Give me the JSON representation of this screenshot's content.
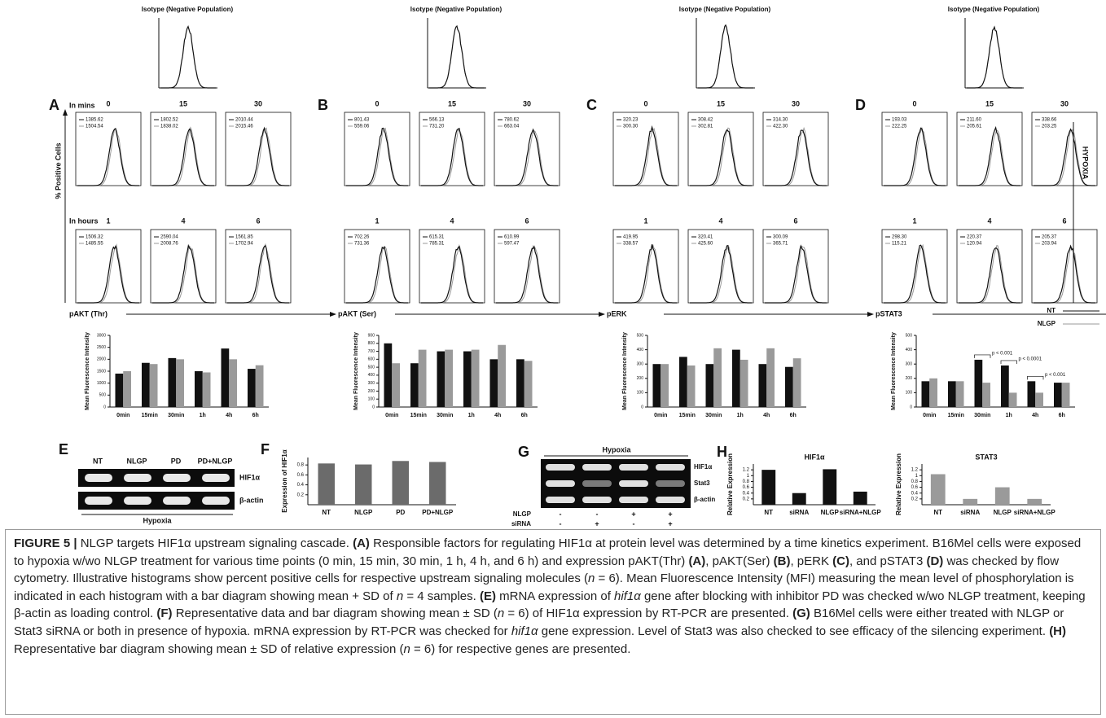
{
  "time_labels": [
    "0",
    "15",
    "30",
    "1",
    "4",
    "6"
  ],
  "y_axis_label": "% Positive Cells",
  "side_label": "HYPOXIA",
  "legend": [
    "NT",
    "NLGP"
  ],
  "panels": [
    {
      "letter": "A",
      "isotype_title": "Isotype (Negative Population)",
      "row1_label": "In mins",
      "row2_label": "In hours",
      "marker": "pAKT (Thr)",
      "mfi": [
        [
          "1385.62",
          "1504.54"
        ],
        [
          "1802.52",
          "1838.02"
        ],
        [
          "2010.44",
          "2015.46"
        ],
        [
          "1506.32",
          "1485.55"
        ],
        [
          "2590.04",
          "2008.76"
        ],
        [
          "1561.85",
          "1702.94"
        ]
      ]
    },
    {
      "letter": "B",
      "isotype_title": "Isotype (Negative Population)",
      "marker": "pAKT (Ser)",
      "mfi": [
        [
          "801.43",
          "559.06"
        ],
        [
          "566.13",
          "731.20"
        ],
        [
          "780.62",
          "663.04"
        ],
        [
          "702.26",
          "731.36"
        ],
        [
          "615.31",
          "785.31"
        ],
        [
          "610.99",
          "597.47"
        ]
      ]
    },
    {
      "letter": "C",
      "isotype_title": "Isotype (Negative Population)",
      "marker": "pERK",
      "mfi": [
        [
          "320.23",
          "300.30"
        ],
        [
          "308.42",
          "302.81"
        ],
        [
          "314.30",
          "422.30"
        ],
        [
          "419.95",
          "338.57"
        ],
        [
          "320.41",
          "425.60"
        ],
        [
          "300.09",
          "365.71"
        ]
      ]
    },
    {
      "letter": "D",
      "isotype_title": "Isotype (Negative Population)",
      "marker": "pSTAT3",
      "mfi": [
        [
          "193.03",
          "222.25"
        ],
        [
          "211.60",
          "205.61"
        ],
        [
          "338.66",
          "203.25"
        ],
        [
          "298.30",
          "115.21"
        ],
        [
          "220.37",
          "120.94"
        ],
        [
          "205.37",
          "203.94"
        ]
      ]
    }
  ],
  "chart_data": [
    {
      "type": "bar",
      "ylabel": "Mean Fluorescence Intensity",
      "categories": [
        "0min",
        "15min",
        "30min",
        "1h",
        "4h",
        "6h"
      ],
      "series": [
        {
          "color": "#111111",
          "values": [
            1400,
            1850,
            2050,
            1500,
            2450,
            1600
          ]
        },
        {
          "color": "#9a9a9a",
          "values": [
            1500,
            1800,
            2000,
            1450,
            2000,
            1750
          ]
        }
      ],
      "ylim": [
        0,
        3000
      ],
      "yticks": [
        0,
        500,
        1000,
        1500,
        2000,
        2500,
        3000
      ]
    },
    {
      "type": "bar",
      "ylabel": "Mean Fluorescence Intensity",
      "categories": [
        "0min",
        "15min",
        "30min",
        "1h",
        "4h",
        "6h"
      ],
      "series": [
        {
          "color": "#111111",
          "values": [
            800,
            550,
            700,
            700,
            600,
            600
          ]
        },
        {
          "color": "#9a9a9a",
          "values": [
            550,
            720,
            720,
            720,
            780,
            580
          ]
        }
      ],
      "ylim": [
        0,
        900
      ],
      "yticks": [
        0,
        100,
        200,
        300,
        400,
        500,
        600,
        700,
        800,
        900
      ]
    },
    {
      "type": "bar",
      "ylabel": "Mean Fluorescence Intensity",
      "categories": [
        "0min",
        "15min",
        "30min",
        "1h",
        "4h",
        "6h"
      ],
      "series": [
        {
          "color": "#111111",
          "values": [
            300,
            350,
            300,
            400,
            300,
            280
          ]
        },
        {
          "color": "#9a9a9a",
          "values": [
            300,
            290,
            410,
            330,
            410,
            340
          ]
        }
      ],
      "ylim": [
        0,
        500
      ],
      "yticks": [
        0,
        100,
        200,
        300,
        400,
        500
      ]
    },
    {
      "type": "bar",
      "ylabel": "Mean Fluorescence Intensity",
      "categories": [
        "0min",
        "15min",
        "30min",
        "1h",
        "4h",
        "6h"
      ],
      "series": [
        {
          "color": "#111111",
          "values": [
            180,
            180,
            330,
            290,
            180,
            170
          ]
        },
        {
          "color": "#9a9a9a",
          "values": [
            200,
            180,
            170,
            100,
            100,
            170
          ]
        }
      ],
      "ylim": [
        0,
        500
      ],
      "yticks": [
        0,
        100,
        200,
        300,
        400,
        500
      ],
      "annotations": [
        "p < 0.001",
        "p < 0.0001",
        "p < 0.001"
      ]
    },
    {
      "type": "bar",
      "panel_letter": "F",
      "ylabel": "Expression of HIF1α",
      "categories": [
        "NT",
        "NLGP",
        "PD",
        "PD+NLGP"
      ],
      "values": [
        0.83,
        0.81,
        0.88,
        0.86
      ],
      "color": "#6b6b6b",
      "ylim": [
        0,
        0.95
      ],
      "yticks": [
        0.2,
        0.4,
        0.6,
        0.8
      ]
    },
    {
      "type": "bar",
      "panel_letter": "H",
      "title": "HIF1α",
      "ylabel": "Relative Expression",
      "categories": [
        "NT",
        "siRNA",
        "NLGP",
        "siRNA+NLGP"
      ],
      "values": [
        1.2,
        0.4,
        1.22,
        0.45
      ],
      "color": "#111111",
      "ylim": [
        0,
        1.4
      ],
      "yticks": [
        0.2,
        0.4,
        0.6,
        0.8,
        1,
        1.2
      ]
    },
    {
      "type": "bar",
      "title": "STAT3",
      "ylabel": "Relative Expression",
      "categories": [
        "NT",
        "siRNA",
        "NLGP",
        "siRNA+NLGP"
      ],
      "values": [
        1.05,
        0.2,
        0.6,
        0.2
      ],
      "color": "#9a9a9a",
      "ylim": [
        0,
        1.4
      ],
      "yticks": [
        0.2,
        0.4,
        0.6,
        0.8,
        1,
        1.2
      ]
    }
  ],
  "gel_E": {
    "letter": "E",
    "lanes": [
      "NT",
      "NLGP",
      "PD",
      "PD+NLGP"
    ],
    "rows": [
      "HIF1α",
      "β-actin"
    ],
    "condition": "Hypoxia"
  },
  "gel_G": {
    "letter": "G",
    "condition": "Hypoxia",
    "rows": [
      "HIF1α",
      "Stat3",
      "β-actin"
    ],
    "treatments": [
      {
        "name": "NLGP",
        "signs": [
          "-",
          "-",
          "+",
          "+"
        ]
      },
      {
        "name": "siRNA",
        "signs": [
          "-",
          "+",
          "-",
          "+"
        ]
      }
    ]
  },
  "caption": [
    {
      "text": "FIGURE 5 |",
      "bold": true
    },
    {
      "text": " NLGP targets HIF1α upstream signaling cascade. "
    },
    {
      "text": "(A)",
      "bold": true
    },
    {
      "text": " Responsible factors for regulating HIF1α at protein level was determined by a time kinetics experiment. B16Mel cells were exposed to hypoxia w/wo NLGP treatment for various time points (0 min, 15 min, 30 min, 1 h, 4 h, and 6 h) and expression pAKT(Thr) "
    },
    {
      "text": "(A)",
      "bold": true
    },
    {
      "text": ", pAKT(Ser) "
    },
    {
      "text": "(B)",
      "bold": true
    },
    {
      "text": ", pERK "
    },
    {
      "text": "(C)",
      "bold": true
    },
    {
      "text": ", and pSTAT3 "
    },
    {
      "text": "(D)",
      "bold": true
    },
    {
      "text": " was checked by flow cytometry. Illustrative histograms show percent positive cells for respective upstream signaling molecules ("
    },
    {
      "text": "n",
      "italic": true
    },
    {
      "text": " = 6). Mean Fluorescence Intensity (MFI) measuring the mean level of phosphorylation is indicated in each histogram with a bar diagram showing mean + SD of "
    },
    {
      "text": "n",
      "italic": true
    },
    {
      "text": " = 4 samples. "
    },
    {
      "text": "(E)",
      "bold": true
    },
    {
      "text": " mRNA expression of "
    },
    {
      "text": "hif1α",
      "italic": true
    },
    {
      "text": " gene after blocking with inhibitor PD was checked w/wo NLGP treatment, keeping β-actin as loading control. "
    },
    {
      "text": "(F)",
      "bold": true
    },
    {
      "text": " Representative data and bar diagram showing mean ± SD ("
    },
    {
      "text": "n",
      "italic": true
    },
    {
      "text": " = 6) of HIF1α expression by RT-PCR are presented. "
    },
    {
      "text": "(G)",
      "bold": true
    },
    {
      "text": " B16Mel cells were either treated with NLGP or Stat3 siRNA or both in presence of hypoxia. mRNA expression by RT-PCR was checked for "
    },
    {
      "text": "hif1α",
      "italic": true
    },
    {
      "text": " gene expression. Level of Stat3 was also checked to see efficacy of the silencing experiment. "
    },
    {
      "text": "(H)",
      "bold": true
    },
    {
      "text": " Representative bar diagram showing mean ± SD of relative expression ("
    },
    {
      "text": "n",
      "italic": true
    },
    {
      "text": " = 6) for respective genes are presented."
    }
  ]
}
